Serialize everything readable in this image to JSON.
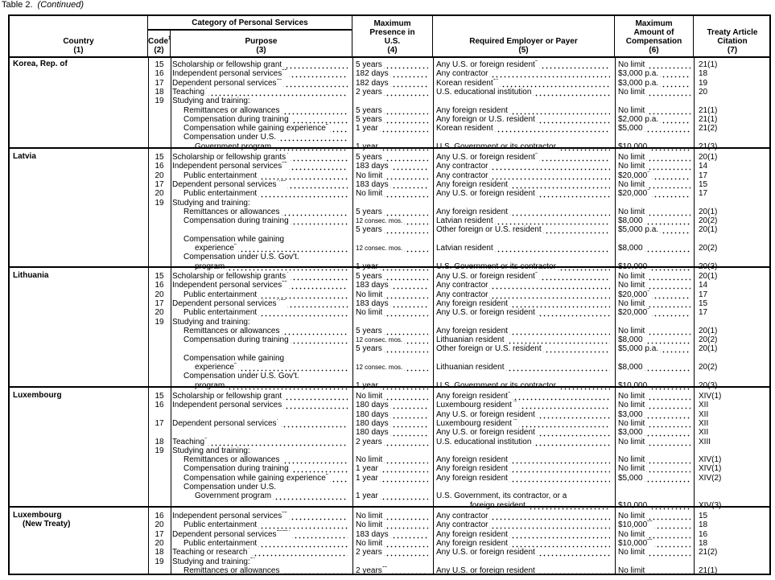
{
  "caption": {
    "label": "Table 2.",
    "note": "(Continued)"
  },
  "header": {
    "category": "Category of Personal Services",
    "columns": [
      {
        "title": "Country",
        "num": "(1)"
      },
      {
        "title": "Code",
        "sup": "1",
        "num": "(2)"
      },
      {
        "title": "Purpose",
        "num": "(3)"
      },
      {
        "title": "Maximum Presence in U.S.",
        "num": "(4)"
      },
      {
        "title": "Required Employer or Payer",
        "num": "(5)"
      },
      {
        "title": "Maximum Amount of Compensation",
        "num": "(6)"
      },
      {
        "title": "Treaty Article Citation",
        "num": "(7)"
      }
    ]
  },
  "groups": [
    {
      "country": "Korea, Rep. of",
      "country_sub": "",
      "lines": [
        {
          "code": "15",
          "purp": "Scholarship or fellowship grant",
          "pres": "5 years",
          "emp": "Any U.S. or foreign resident",
          "empSup": "5",
          "comp": "No limit",
          "cit": "21(1)"
        },
        {
          "code": "16",
          "purp": "Independent personal services",
          "purpSup": "22",
          "pres": "182 days",
          "emp": "Any contractor",
          "comp": "$3,000 p.a.",
          "cit": "18"
        },
        {
          "code": "17",
          "purp": "Dependent personal services",
          "purpSup": "13",
          "pres": "182 days",
          "emp": "Korean resident",
          "empSup": "16",
          "comp": "$3,000 p.a.",
          "cit": "19"
        },
        {
          "code": "18",
          "purp": "Teaching",
          "purpSup": "4",
          "pres": "2 years",
          "emp": "U.S. educational institution",
          "comp": "No limit",
          "cit": "20"
        },
        {
          "code": "19",
          "purp": "Studying and training:",
          "nl": 1
        },
        {
          "purp": "Remittances or allowances",
          "ind": 1,
          "pres": "5 years",
          "emp": "Any foreign resident",
          "comp": "No limit",
          "cit": "21(1)"
        },
        {
          "purp": "Compensation during training",
          "ind": 1,
          "pres": "5 years",
          "emp": "Any foreign or U.S. resident",
          "comp": "$2,000 p.a.",
          "cit": "21(1)"
        },
        {
          "purp": "Compensation while gaining experience",
          "purpSup": "2",
          "ind": 1,
          "pres": "1 year",
          "emp": "Korean resident",
          "comp": "$5,000",
          "cit": "21(2)"
        },
        {
          "purp": "Compensation under U.S.",
          "ind": 1
        },
        {
          "purp": "Government program",
          "ind": 2,
          "pres": "1 year",
          "emp": "U.S. Government or its contractor",
          "comp": "$10,000",
          "cit": "21(3)"
        }
      ]
    },
    {
      "country": "Latvia",
      "country_sub": "",
      "lines": [
        {
          "code": "15",
          "purp": "Scholarship or fellowship grants",
          "purpSup": "4",
          "pres": "5 years",
          "emp": "Any U.S. or foreign resident",
          "empSup": "5",
          "comp": "No limit",
          "cit": "20(1)"
        },
        {
          "code": "16",
          "purp": "Independent personal services",
          "purpSup": "22",
          "pres": "183 days",
          "emp": "Any contractor",
          "comp": "No limit",
          "cit": "14"
        },
        {
          "code": "20",
          "purp": "Public entertainment",
          "ind": 1,
          "pres": "No limit",
          "emp": "Any contractor",
          "comp": "$20,000",
          "compSup": "9",
          "cit": "17"
        },
        {
          "code": "17",
          "purp": "Dependent personal services",
          "purpSup": "7,13",
          "pres": "183 days",
          "emp": "Any foreign resident",
          "comp": "No limit",
          "cit": "15"
        },
        {
          "code": "20",
          "purp": "Public entertainment",
          "ind": 1,
          "pres": "No limit",
          "emp": "Any U.S. or foreign resident",
          "comp": "$20,000",
          "compSup": "9",
          "cit": "17"
        },
        {
          "code": "19",
          "purp": "Studying and training:",
          "nl": 1
        },
        {
          "purp": "Remittances or allowances",
          "ind": 1,
          "pres": "5 years",
          "emp": "Any foreign resident",
          "comp": "No limit",
          "cit": "20(1)"
        },
        {
          "purp": "Compensation during training",
          "ind": 1,
          "pres": "12 consec. mos.",
          "small": 1,
          "emp": "Latvian resident",
          "comp": "$8,000",
          "cit": "20(2)"
        },
        {
          "pres": "5 years",
          "emp": "Other foreign or U.S. resident",
          "comp": "$5,000 p.a.",
          "cit": "20(1)"
        },
        {
          "purp": "Compensation while gaining",
          "ind": 1,
          "nl": 1
        },
        {
          "purp": "experience",
          "purpSup": "2",
          "ind": 2,
          "pres": "12 consec. mos.",
          "small": 1,
          "emp": "Latvian resident",
          "comp": "$8,000",
          "cit": "20(2)"
        },
        {
          "purp": "Compensation under U.S. Gov't.",
          "ind": 1,
          "nl": 1
        },
        {
          "purp": "program",
          "ind": 2,
          "pres": "1 year",
          "emp": "U.S. Government or its contractor",
          "comp": "$10,000",
          "cit": "20(3)"
        }
      ]
    },
    {
      "country": "Lithuania",
      "country_sub": "",
      "lines": [
        {
          "code": "15",
          "purp": "Scholarship or fellowship grants",
          "purpSup": "4",
          "pres": "5 years",
          "emp": "Any U.S. or foreign resident",
          "empSup": "5",
          "comp": "No limit",
          "cit": "20(1)"
        },
        {
          "code": "16",
          "purp": "Independent personal services",
          "purpSup": "22",
          "pres": "183 days",
          "emp": "Any contractor",
          "comp": "No limit",
          "cit": "14"
        },
        {
          "code": "20",
          "purp": "Public entertainment",
          "ind": 1,
          "pres": "No limit",
          "emp": "Any contractor",
          "comp": "$20,000",
          "compSup": "9",
          "cit": "17"
        },
        {
          "code": "17",
          "purp": "Dependent personal services",
          "purpSup": "7,13",
          "pres": "183 days",
          "emp": "Any foreign resident",
          "comp": "No limit",
          "cit": "15"
        },
        {
          "code": "20",
          "purp": "Public entertainment",
          "ind": 1,
          "pres": "No limit",
          "emp": "Any U.S. or foreign resident",
          "comp": "$20,000",
          "compSup": "9",
          "cit": "17"
        },
        {
          "code": "19",
          "purp": "Studying and training:",
          "nl": 1
        },
        {
          "purp": "Remittances or allowances",
          "ind": 1,
          "pres": "5 years",
          "emp": "Any foreign resident",
          "comp": "No limit",
          "cit": "20(1)"
        },
        {
          "purp": "Compensation during training",
          "ind": 1,
          "pres": "12 consec. mos.",
          "small": 1,
          "emp": "Lithuanian resident",
          "comp": "$8,000",
          "cit": "20(2)"
        },
        {
          "pres": "5 years",
          "emp": "Other foreign or U.S. resident",
          "comp": "$5,000 p.a.",
          "cit": "20(1)"
        },
        {
          "purp": "Compensation while gaining",
          "ind": 1,
          "nl": 1
        },
        {
          "purp": "experience",
          "purpSup": "2",
          "ind": 2,
          "pres": "12 consec. mos.",
          "small": 1,
          "emp": "Lithuanian resident",
          "comp": "$8,000",
          "cit": "20(2)"
        },
        {
          "purp": "Compensation under U.S. Gov't.",
          "ind": 1,
          "nl": 1
        },
        {
          "purp": "program",
          "ind": 2,
          "pres": "1 year",
          "emp": "U.S. Government or its contractor",
          "comp": "$10,000",
          "cit": "20(3)"
        }
      ]
    },
    {
      "country": "Luxembourg",
      "country_sub": "",
      "lines": [
        {
          "code": "15",
          "purp": "Scholarship or fellowship grant",
          "pres": "No limit",
          "emp": "Any foreign resident",
          "empSup": "5",
          "comp": "No limit",
          "cit": "XIV(1)"
        },
        {
          "code": "16",
          "purp": "Independent personal services",
          "pres": "180 days",
          "emp": "Luxembourg resident",
          "empSup": "48",
          "comp": "No limit",
          "cit": "XII"
        },
        {
          "pres": "180 days",
          "emp": "Any U.S. or foreign resident",
          "comp": "$3,000",
          "cit": "XII"
        },
        {
          "code": "17",
          "purp": "Dependent personal services",
          "purpSup": "7",
          "pres": "180 days",
          "emp": "Luxembourg resident",
          "empSup": "48",
          "comp": "No limit",
          "cit": "XII"
        },
        {
          "pres": "180 days",
          "emp": "Any U.S. or foreign resident",
          "comp": "$3,000",
          "cit": "XII"
        },
        {
          "code": "18",
          "purp": "Teaching",
          "purpSup": "6",
          "pres": "2 years",
          "emp": "U.S. educational institution",
          "comp": "No limit",
          "cit": "XIII"
        },
        {
          "code": "19",
          "purp": "Studying and training:",
          "nl": 1
        },
        {
          "purp": "Remittances or allowances",
          "ind": 1,
          "pres": "No limit",
          "emp": "Any foreign resident",
          "comp": "No limit",
          "cit": "XIV(1)"
        },
        {
          "purp": "Compensation during training",
          "ind": 1,
          "pres": "1 year",
          "emp": "Any foreign resident",
          "comp": "No limit",
          "cit": "XIV(1)"
        },
        {
          "purp": "Compensation while gaining experience",
          "purpSup": "2",
          "ind": 1,
          "pres": "1 year",
          "emp": "Any foreign resident",
          "comp": "$5,000",
          "cit": "XIV(2)"
        },
        {
          "purp": "Compensation under U.S.",
          "ind": 1,
          "nl": 1
        },
        {
          "purp": "Government program",
          "ind": 2,
          "pres": "1 year",
          "emp": "U.S. Government, its contractor, or a",
          "enl": 1
        },
        {
          "emp": "foreign resident",
          "eind": 1,
          "comp": "$10,000",
          "cit": "XIV(3)"
        }
      ]
    },
    {
      "country": "Luxembourg",
      "country_sub": "(New Treaty)",
      "lines": [
        {
          "code": "16",
          "purp": "Independent personal services",
          "purpSup": "22",
          "pres": "No limit",
          "emp": "Any contractor",
          "comp": "No limit",
          "cit": "15"
        },
        {
          "code": "20",
          "purp": "Public entertainment",
          "ind": 1,
          "pres": "No limit",
          "emp": "Any contractor",
          "comp": "$10,000",
          "compSup": "25",
          "cit": "18"
        },
        {
          "code": "17",
          "purp": "Dependent personal services",
          "purpSup": "13&24",
          "pres": "183 days",
          "emp": "Any foreign resident",
          "comp": "No limit",
          "cit": "16"
        },
        {
          "code": "20",
          "purp": "Public entertainment",
          "ind": 1,
          "pres": "No limit",
          "emp": "Any foreign resident",
          "comp": "$10,000",
          "compSup": "25",
          "cit": "18"
        },
        {
          "code": "18",
          "purp": "Teaching or research",
          "purpSup": "4",
          "pres": "2 years",
          "emp": "Any U.S. or foreign resident",
          "comp": "No limit",
          "cit": "21(2)"
        },
        {
          "code": "19",
          "purp": "Studying and training:",
          "purpSup": "10",
          "nl": 1
        },
        {
          "purp": "Remittances or allowances",
          "ind": 1,
          "pres": "2 years",
          "presSup": "11",
          "emp": "Any U.S. or foreign resident",
          "comp": "No limit",
          "cit": "21(1)"
        }
      ]
    }
  ]
}
